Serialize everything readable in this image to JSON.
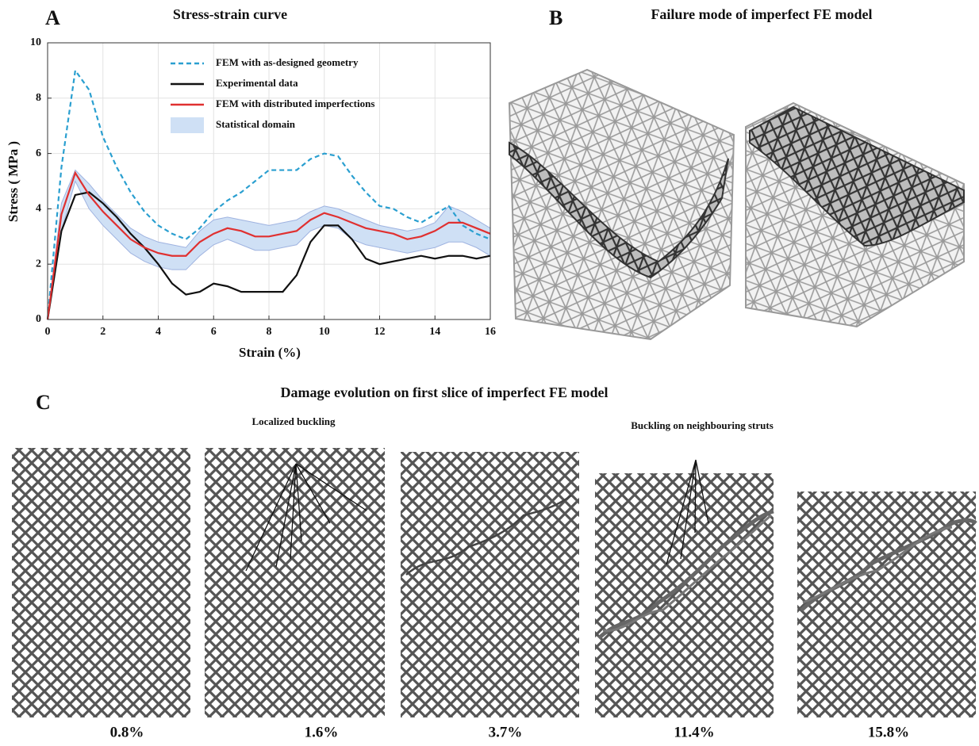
{
  "chart_data": {
    "type": "line",
    "panel_label": "A",
    "title": "Stress-strain curve",
    "x_label": "Strain (%)",
    "y_label": "Stress ( MPa )",
    "xlim": [
      0,
      16
    ],
    "xticks": [
      0,
      2,
      4,
      6,
      8,
      10,
      12,
      14,
      16
    ],
    "ylim": [
      0,
      10
    ],
    "yticks": [
      0,
      2,
      4,
      6,
      8,
      10
    ],
    "grid": true,
    "x": [
      0,
      0.5,
      1,
      1.5,
      2,
      2.5,
      3,
      3.5,
      4,
      4.5,
      5,
      5.5,
      6,
      6.5,
      7,
      7.5,
      8,
      8.5,
      9,
      9.5,
      10,
      10.5,
      11,
      11.5,
      12,
      12.5,
      13,
      13.5,
      14,
      14.5,
      15,
      15.5,
      16
    ],
    "series": [
      {
        "name": "FEM with as-designed geometry",
        "color": "#2a9fd0",
        "line_style": "dashed",
        "values": [
          0,
          5.5,
          9.0,
          8.3,
          6.6,
          5.5,
          4.6,
          3.9,
          3.4,
          3.1,
          2.9,
          3.3,
          3.9,
          4.3,
          4.6,
          5.0,
          5.4,
          5.4,
          5.4,
          5.8,
          6.0,
          5.9,
          5.2,
          4.6,
          4.1,
          4.0,
          3.7,
          3.5,
          3.8,
          4.1,
          3.4,
          3.1,
          2.9
        ]
      },
      {
        "name": "Experimental data",
        "color": "#111111",
        "line_style": "solid",
        "values": [
          0,
          3.2,
          4.5,
          4.6,
          4.2,
          3.7,
          3.1,
          2.6,
          2.0,
          1.3,
          0.9,
          1.0,
          1.3,
          1.2,
          1.0,
          1.0,
          1.0,
          1.0,
          1.6,
          2.8,
          3.4,
          3.4,
          2.9,
          2.2,
          2.0,
          2.1,
          2.2,
          2.3,
          2.2,
          2.3,
          2.3,
          2.2,
          2.3
        ]
      },
      {
        "name": "FEM with distributed imperfections",
        "color": "#e03030",
        "line_style": "solid",
        "values": [
          0,
          3.8,
          5.3,
          4.5,
          3.9,
          3.4,
          2.9,
          2.6,
          2.4,
          2.3,
          2.3,
          2.8,
          3.1,
          3.3,
          3.2,
          3.0,
          3.0,
          3.1,
          3.2,
          3.6,
          3.85,
          3.7,
          3.5,
          3.3,
          3.2,
          3.1,
          2.9,
          3.0,
          3.2,
          3.5,
          3.5,
          3.3,
          3.1
        ]
      }
    ],
    "band": {
      "name": "Statistical domain",
      "color": "#cfe0f5",
      "upper": [
        0,
        4.2,
        5.4,
        4.9,
        4.3,
        3.8,
        3.3,
        3.0,
        2.8,
        2.7,
        2.6,
        3.2,
        3.6,
        3.7,
        3.6,
        3.5,
        3.4,
        3.5,
        3.6,
        3.9,
        4.1,
        4.0,
        3.8,
        3.6,
        3.4,
        3.3,
        3.2,
        3.3,
        3.5,
        4.1,
        3.9,
        3.6,
        3.3
      ],
      "lower": [
        0,
        3.2,
        5.0,
        4.0,
        3.4,
        2.9,
        2.4,
        2.1,
        1.9,
        1.8,
        1.8,
        2.3,
        2.7,
        2.9,
        2.7,
        2.5,
        2.5,
        2.6,
        2.7,
        3.2,
        3.4,
        3.3,
        2.9,
        2.7,
        2.6,
        2.5,
        2.4,
        2.5,
        2.6,
        2.8,
        2.8,
        2.6,
        2.3
      ]
    }
  },
  "panel_b": {
    "label": "B",
    "title": "Failure mode of imperfect FE model"
  },
  "panel_c": {
    "label": "C",
    "title": "Damage evolution on first slice of imperfect FE model",
    "annotations": [
      "Localized buckling",
      "Buckling on neighbouring struts"
    ],
    "frames": [
      "0.8%",
      "1.6%",
      "3.7%",
      "11.4%",
      "15.8%"
    ]
  }
}
